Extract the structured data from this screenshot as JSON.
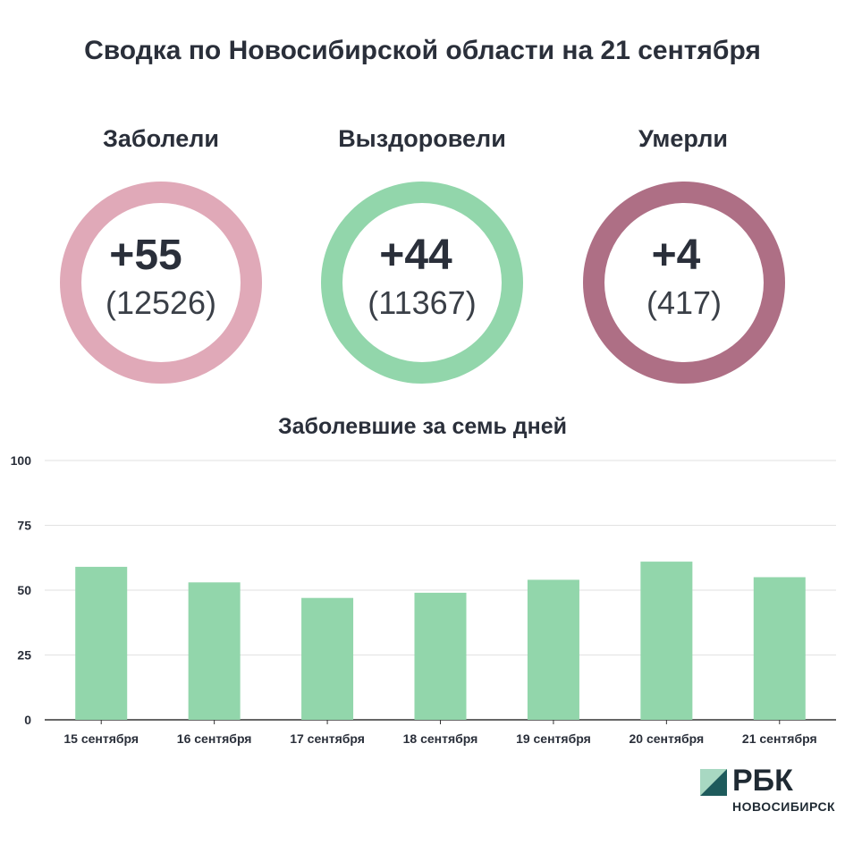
{
  "title": "Сводка по Новосибирской области на 21 сентября",
  "stats": [
    {
      "label": "Заболели",
      "delta": "+55",
      "total": "(12526)",
      "color": "#e0a9b8"
    },
    {
      "label": "Выздоровели",
      "delta": "+44",
      "total": "(11367)",
      "color": "#92d6ab"
    },
    {
      "label": "Умерли",
      "delta": "+4",
      "total": "(417)",
      "color": "#ae6f85"
    }
  ],
  "chart_data": {
    "type": "bar",
    "title": "Заболевшие за семь дней",
    "categories": [
      "15 сентября",
      "16 сентября",
      "17 сентября",
      "18 сентября",
      "19 сентября",
      "20 сентября",
      "21 сентября"
    ],
    "values": [
      59,
      53,
      47,
      49,
      54,
      61,
      55
    ],
    "ylim": [
      0,
      100
    ],
    "yticks": [
      0,
      25,
      50,
      75,
      100
    ],
    "grid": true,
    "bar_color": "#92d6ab"
  },
  "logo": {
    "text": "РБК",
    "subtitle": "НОВОСИБИРСК"
  }
}
